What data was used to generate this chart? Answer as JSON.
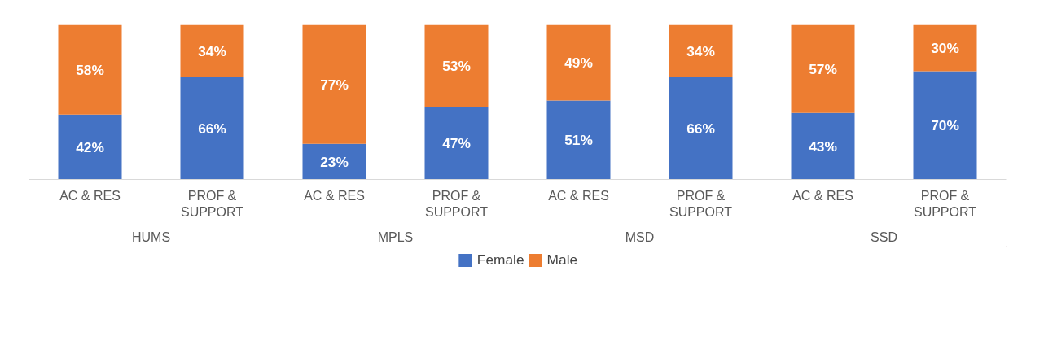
{
  "chart_data": {
    "type": "bar",
    "stacked": true,
    "categories": [
      "AC & RES",
      "PROF & SUPPORT",
      "AC & RES",
      "PROF & SUPPORT",
      "AC & RES",
      "PROF & SUPPORT",
      "AC & RES",
      "PROF & SUPPORT"
    ],
    "annotations": [
      "HUMS",
      "MPLS",
      "MSD",
      "SSD"
    ],
    "series": [
      {
        "name": "Female",
        "color": "#4472c4",
        "values": [
          42,
          66,
          23,
          47,
          51,
          66,
          43,
          70
        ],
        "value_labels": [
          "42%",
          "66%",
          "23%",
          "47%",
          "51%",
          "66%",
          "43%",
          "70%"
        ]
      },
      {
        "name": "Male",
        "color": "#ed7d31",
        "values": [
          58,
          34,
          77,
          53,
          49,
          34,
          57,
          30
        ],
        "value_labels": [
          "58%",
          "34%",
          "77%",
          "53%",
          "49%",
          "34%",
          "57%",
          "30%"
        ]
      }
    ],
    "grid": false,
    "legend": "bottom"
  }
}
